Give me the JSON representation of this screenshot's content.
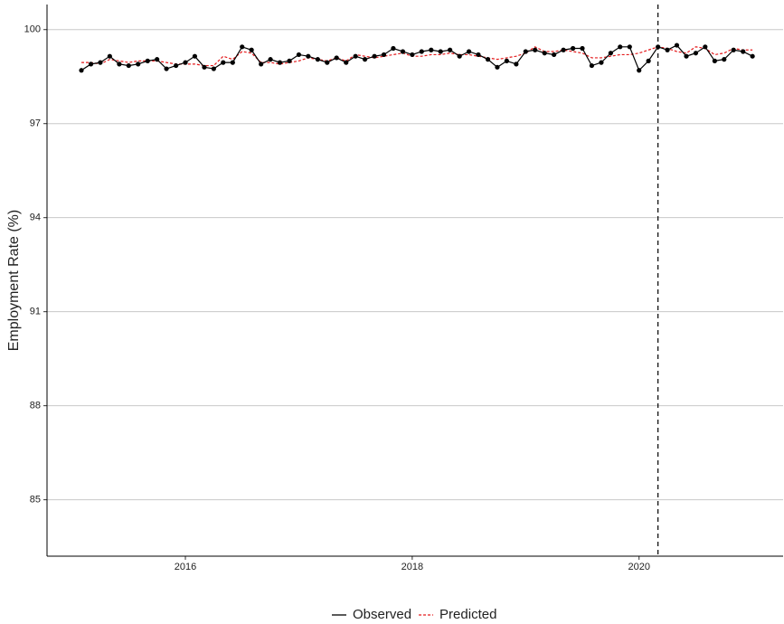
{
  "chart_data": {
    "type": "line",
    "y_label": "Employment Rate (%)",
    "x": [
      2015.083,
      2015.167,
      2015.25,
      2015.333,
      2015.417,
      2015.5,
      2015.583,
      2015.667,
      2015.75,
      2015.833,
      2015.917,
      2016.0,
      2016.083,
      2016.167,
      2016.25,
      2016.333,
      2016.417,
      2016.5,
      2016.583,
      2016.667,
      2016.75,
      2016.833,
      2016.917,
      2017.0,
      2017.083,
      2017.167,
      2017.25,
      2017.333,
      2017.417,
      2017.5,
      2017.583,
      2017.667,
      2017.75,
      2017.833,
      2017.917,
      2018.0,
      2018.083,
      2018.167,
      2018.25,
      2018.333,
      2018.417,
      2018.5,
      2018.583,
      2018.667,
      2018.75,
      2018.833,
      2018.917,
      2019.0,
      2019.083,
      2019.167,
      2019.25,
      2019.333,
      2019.417,
      2019.5,
      2019.583,
      2019.667,
      2019.75,
      2019.833,
      2019.917,
      2020.0,
      2020.083,
      2020.167,
      2020.25,
      2020.333,
      2020.417,
      2020.5,
      2020.583,
      2020.667,
      2020.75,
      2020.833,
      2020.917,
      2021.0
    ],
    "series": [
      {
        "name": "Observed",
        "color": "#000000",
        "dash": false,
        "markers": true,
        "values": [
          98.7,
          98.9,
          98.95,
          99.15,
          98.9,
          98.85,
          98.9,
          99.0,
          99.05,
          98.75,
          98.85,
          98.95,
          99.15,
          98.8,
          98.75,
          98.95,
          98.95,
          99.45,
          99.35,
          98.9,
          99.05,
          98.95,
          99.0,
          99.2,
          99.15,
          99.05,
          98.95,
          99.1,
          98.95,
          99.15,
          99.05,
          99.15,
          99.2,
          99.4,
          99.3,
          99.2,
          99.3,
          99.35,
          99.3,
          99.35,
          99.15,
          99.3,
          99.2,
          99.05,
          98.8,
          99.0,
          98.9,
          99.3,
          99.35,
          99.25,
          99.2,
          99.35,
          99.4,
          99.4,
          98.85,
          98.95,
          99.25,
          99.45,
          99.45,
          98.7,
          99.0,
          99.45,
          99.35,
          99.5,
          99.15,
          99.25,
          99.45,
          99.0,
          99.05,
          99.35,
          99.3,
          99.15
        ]
      },
      {
        "name": "Predicted",
        "color": "#e41a1c",
        "dash": true,
        "markers": false,
        "values": [
          98.95,
          98.95,
          98.9,
          99.05,
          99.0,
          98.95,
          99.0,
          99.0,
          99.0,
          98.95,
          98.9,
          98.9,
          98.9,
          98.85,
          98.85,
          99.15,
          99.05,
          99.3,
          99.25,
          98.95,
          98.95,
          98.9,
          98.95,
          99.0,
          99.1,
          99.05,
          99.0,
          99.1,
          99.0,
          99.2,
          99.15,
          99.1,
          99.15,
          99.2,
          99.25,
          99.15,
          99.15,
          99.2,
          99.2,
          99.25,
          99.2,
          99.2,
          99.15,
          99.1,
          99.05,
          99.1,
          99.15,
          99.25,
          99.45,
          99.3,
          99.3,
          99.35,
          99.3,
          99.25,
          99.1,
          99.1,
          99.15,
          99.2,
          99.2,
          99.25,
          99.35,
          99.45,
          99.4,
          99.3,
          99.25,
          99.45,
          99.4,
          99.2,
          99.25,
          99.4,
          99.35,
          99.35
        ]
      }
    ],
    "xlim": [
      2014.78,
      2021.27
    ],
    "xticks": [
      2016,
      2018,
      2020
    ],
    "ylim": [
      83.2,
      100.8
    ],
    "yticks": [
      85,
      88,
      91,
      94,
      97,
      100
    ],
    "grid": true,
    "vline": 2020.167,
    "legend": "bottom"
  }
}
